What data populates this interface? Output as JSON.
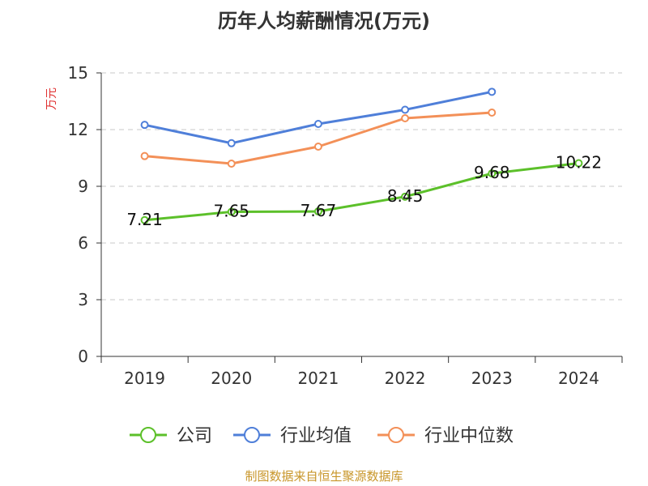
{
  "chart_data": {
    "type": "line",
    "title": "历年人均薪酬情况(万元)",
    "ylabel": "万元",
    "xlabel": "",
    "categories": [
      "2019",
      "2020",
      "2021",
      "2022",
      "2023",
      "2024"
    ],
    "ylim": [
      0,
      15
    ],
    "yticks": [
      0,
      3,
      6,
      9,
      12,
      15
    ],
    "grid": true,
    "legend_position": "bottom",
    "series": [
      {
        "name": "公司",
        "color": "#5cc02a",
        "values": [
          7.21,
          7.65,
          7.67,
          8.45,
          9.68,
          10.22
        ],
        "labels": [
          "7.21",
          "7.65",
          "7.67",
          "8.45",
          "9.68",
          "10.22"
        ]
      },
      {
        "name": "行业均值",
        "color": "#4f7fd9",
        "values": [
          12.25,
          11.28,
          12.3,
          13.05,
          14.0,
          null
        ]
      },
      {
        "name": "行业中位数",
        "color": "#f39058",
        "values": [
          10.6,
          10.2,
          11.1,
          12.6,
          12.9,
          null
        ]
      }
    ]
  },
  "source": "制图数据来自恒生聚源数据库"
}
